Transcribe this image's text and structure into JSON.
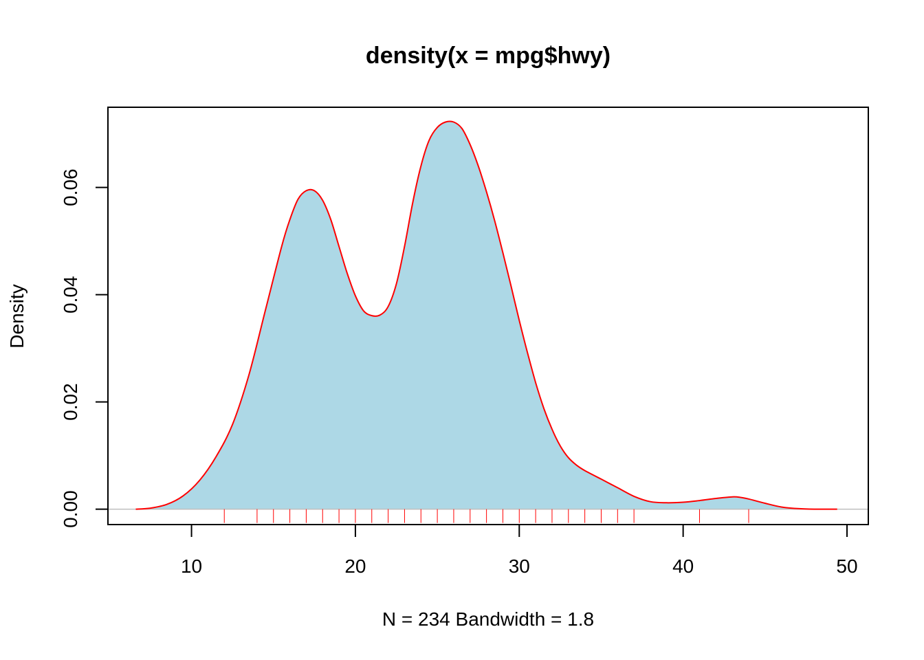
{
  "chart_data": {
    "type": "area",
    "title": "density(x = mpg$hwy)",
    "xlabel": "N = 234   Bandwidth = 1.8",
    "ylabel": "Density",
    "xlim": [
      4.9,
      51.3
    ],
    "ylim": [
      -0.00287,
      0.07496
    ],
    "x_ticks": [
      10,
      20,
      30,
      40,
      50
    ],
    "x_tick_labels": [
      "10",
      "20",
      "30",
      "40",
      "50"
    ],
    "y_ticks": [
      0.0,
      0.02,
      0.04,
      0.06
    ],
    "y_tick_labels": [
      "0.00",
      "0.02",
      "0.04",
      "0.06"
    ],
    "grid": false,
    "fill_color": "#add8e6",
    "line_color": "#ff0000",
    "rug_color": "#ff0000",
    "baseline_color": "#bebebe",
    "series": [
      {
        "x": [
          6.6,
          7.5,
          8.5,
          9.5,
          10.5,
          11.5,
          12.5,
          13.5,
          14.5,
          15.5,
          16.0,
          16.5,
          17.0,
          17.5,
          18.0,
          18.5,
          19.0,
          19.5,
          20.0,
          20.5,
          21.0,
          21.5,
          22.0,
          22.5,
          23.0,
          23.5,
          24.0,
          24.5,
          25.0,
          25.5,
          26.0,
          26.5,
          27.0,
          27.5,
          28.0,
          28.5,
          29.0,
          29.5,
          30.0,
          30.5,
          31.0,
          31.5,
          32.0,
          32.5,
          33.0,
          33.5,
          34.0,
          35.0,
          36.0,
          37.0,
          38.0,
          39.0,
          40.0,
          41.0,
          42.0,
          43.0,
          43.5,
          44.0,
          45.0,
          46.0,
          47.0,
          48.0,
          49.4
        ],
        "y": [
          0.0,
          0.0002,
          0.0009,
          0.0025,
          0.0054,
          0.0098,
          0.0158,
          0.025,
          0.037,
          0.049,
          0.054,
          0.0578,
          0.0594,
          0.0594,
          0.0576,
          0.054,
          0.049,
          0.044,
          0.0398,
          0.037,
          0.0361,
          0.0362,
          0.0378,
          0.042,
          0.049,
          0.0572,
          0.064,
          0.0688,
          0.0712,
          0.0722,
          0.0722,
          0.071,
          0.068,
          0.064,
          0.0592,
          0.0538,
          0.0478,
          0.0416,
          0.0352,
          0.0292,
          0.0236,
          0.0188,
          0.0149,
          0.0118,
          0.0096,
          0.0082,
          0.0072,
          0.0056,
          0.004,
          0.0024,
          0.0014,
          0.0012,
          0.0013,
          0.0016,
          0.002,
          0.0023,
          0.0022,
          0.0019,
          0.0011,
          0.0004,
          0.0001,
          0.0,
          0.0
        ]
      }
    ],
    "rug_x": [
      12,
      14,
      15,
      16,
      17,
      18,
      19,
      20,
      21,
      22,
      23,
      24,
      25,
      26,
      27,
      28,
      29,
      30,
      31,
      32,
      33,
      34,
      35,
      36,
      37,
      41,
      44
    ]
  }
}
